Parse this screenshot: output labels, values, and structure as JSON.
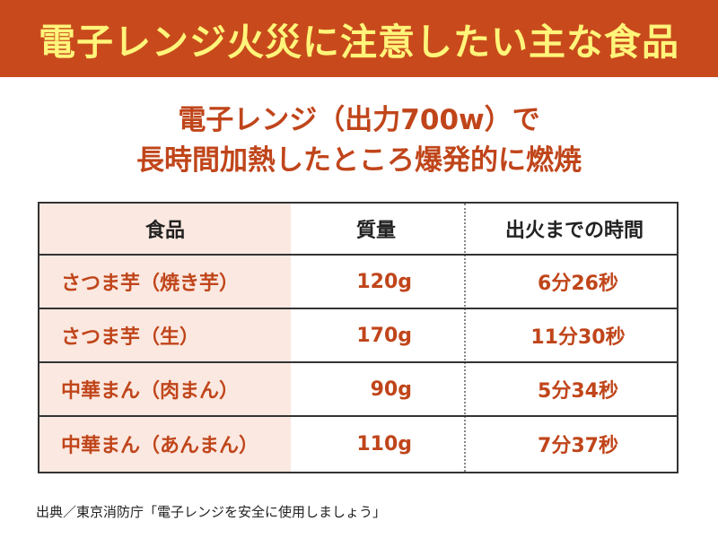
{
  "banner": {
    "title": "電子レンジ火災に注意したい主な食品"
  },
  "subtitle": {
    "line1": "電子レンジ（出力700w）で",
    "line2": "長時間加熱したところ爆発的に燃焼"
  },
  "table": {
    "headers": {
      "food": "食品",
      "mass": "質量",
      "time": "出火までの時間"
    },
    "rows": [
      {
        "food": "さつま芋（焼き芋）",
        "mass": "120g",
        "time": "6分26秒"
      },
      {
        "food": "さつま芋（生）",
        "mass": "170g",
        "time": "11分30秒"
      },
      {
        "food": "中華まん（肉まん）",
        "mass": "90g",
        "time": "5分34秒"
      },
      {
        "food": "中華まん（あんまん）",
        "mass": "110g",
        "time": "7分37秒"
      }
    ]
  },
  "source": "出典／東京消防庁「電子レンジを安全に使用しましょう」",
  "colors": {
    "banner_bg": "#c84a1c",
    "banner_text": "#fff57a",
    "accent_text": "#c0451a",
    "name_column_bg": "#fbe8e0"
  }
}
